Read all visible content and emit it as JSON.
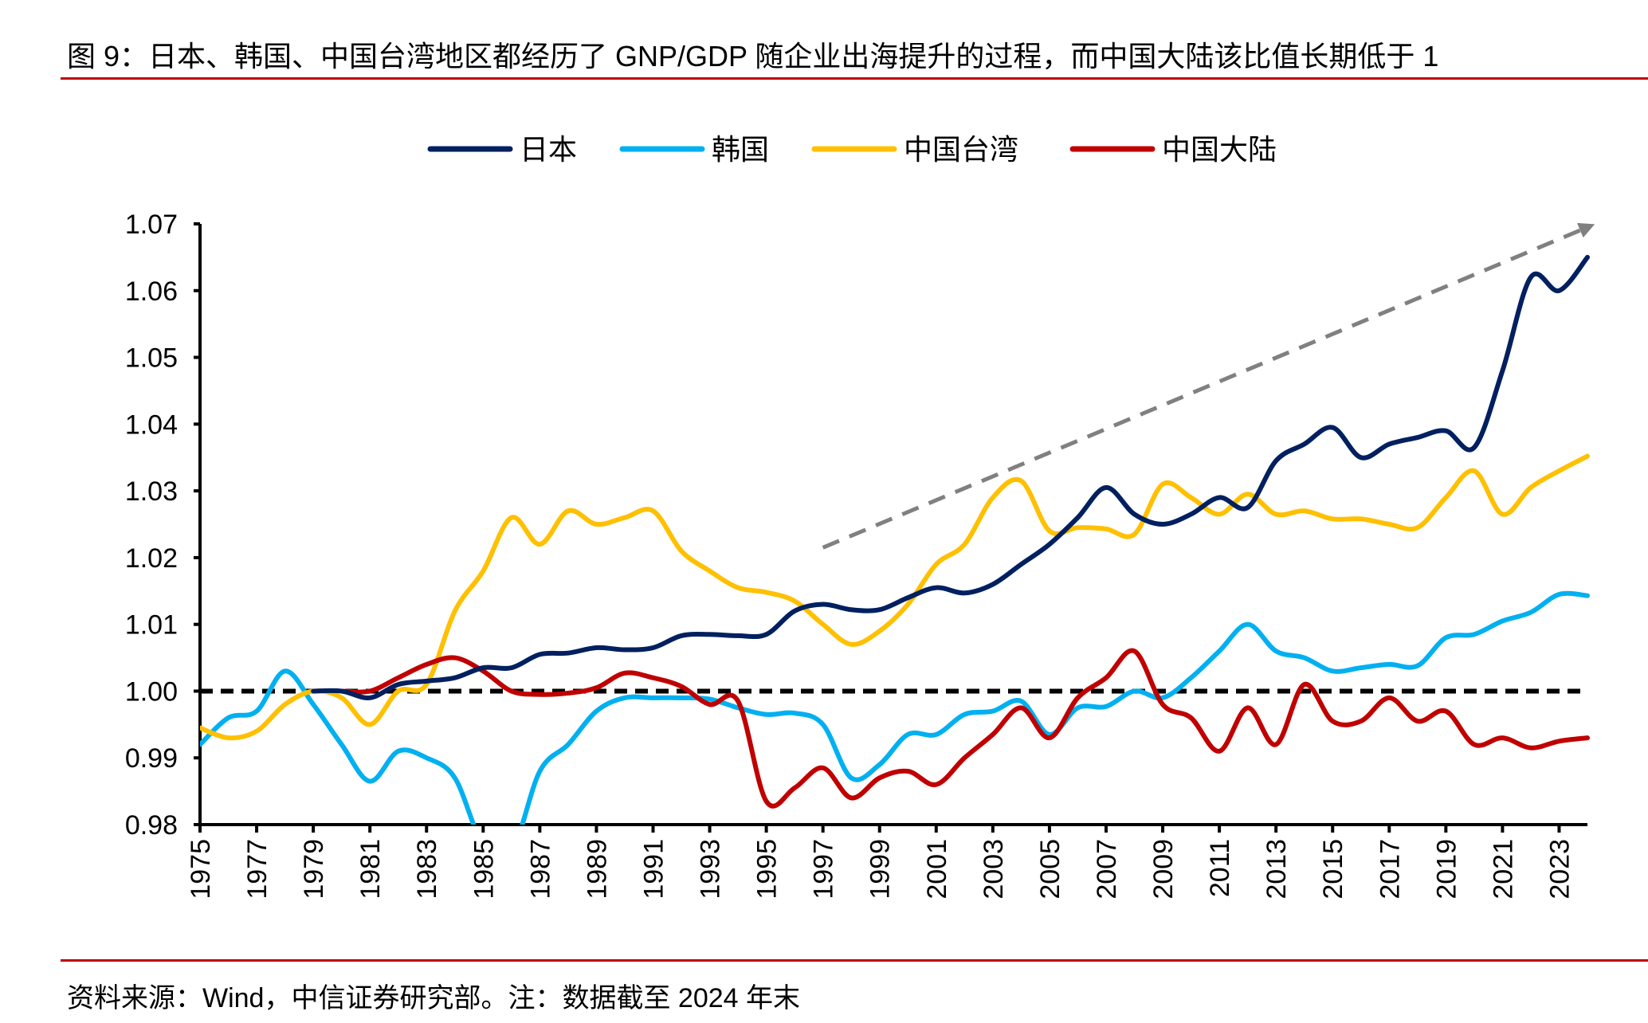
{
  "title": "图 9：日本、韩国、中国台湾地区都经历了 GNP/GDP 随企业出海提升的过程，而中国大陆该比值长期低于 1",
  "source": "资料来源：Wind，中信证券研究部。注：数据截至 2024 年末",
  "colors": {
    "rule": "#c00000",
    "japan": "#002060",
    "korea": "#00b0f0",
    "taiwan": "#ffc000",
    "mainland": "#c00000",
    "reference": "#000000",
    "arrow": "#808080"
  },
  "chart_data": {
    "type": "line",
    "title": "",
    "xlabel": "",
    "ylabel": "",
    "xlim": [
      1975,
      2024
    ],
    "ylim": [
      0.98,
      1.07
    ],
    "yticks": [
      "0.98",
      "0.99",
      "1.00",
      "1.01",
      "1.02",
      "1.03",
      "1.04",
      "1.05",
      "1.06",
      "1.07"
    ],
    "xticks": [
      "1975",
      "1977",
      "1979",
      "1981",
      "1983",
      "1985",
      "1987",
      "1989",
      "1991",
      "1993",
      "1995",
      "1997",
      "1999",
      "2001",
      "2003",
      "2005",
      "2007",
      "2009",
      "2011",
      "2013",
      "2015",
      "2017",
      "2019",
      "2021",
      "2023"
    ],
    "grid": false,
    "legend_position": "top",
    "reference_line": {
      "y": 1.0,
      "style": "dashed"
    },
    "trend_arrow": {
      "from": [
        1997,
        1.0215
      ],
      "to": [
        2024,
        1.0695
      ],
      "style": "dashed"
    },
    "series": [
      {
        "name": "日本",
        "color": "#002060",
        "x_start": 1979,
        "values": [
          1.0,
          1.0,
          0.999,
          1.001,
          1.0015,
          1.002,
          1.0035,
          1.0035,
          1.0055,
          1.0057,
          1.0065,
          1.0062,
          1.0065,
          1.0083,
          1.0085,
          1.0083,
          1.0085,
          1.012,
          1.013,
          1.0122,
          1.0122,
          1.014,
          1.0155,
          1.0147,
          1.016,
          1.019,
          1.022,
          1.026,
          1.0305,
          1.0265,
          1.025,
          1.0265,
          1.029,
          1.0275,
          1.0345,
          1.037,
          1.0395,
          1.035,
          1.037,
          1.038,
          1.039,
          1.0365,
          1.048,
          1.062,
          1.06,
          1.065
        ]
      },
      {
        "name": "韩国",
        "color": "#00b0f0",
        "x_start": 1975,
        "values": [
          0.992,
          0.996,
          0.997,
          1.003,
          0.998,
          0.992,
          0.9865,
          0.991,
          0.99,
          0.987,
          0.977,
          0.976,
          0.988,
          0.992,
          0.997,
          0.999,
          0.999,
          0.999,
          0.9988,
          0.9975,
          0.9965,
          0.9967,
          0.995,
          0.987,
          0.989,
          0.9935,
          0.9935,
          0.9965,
          0.997,
          0.9985,
          0.9935,
          0.9975,
          0.9977,
          1.0,
          0.999,
          1.002,
          1.006,
          1.01,
          1.006,
          1.005,
          1.003,
          1.0035,
          1.004,
          1.0038,
          1.008,
          1.0085,
          1.0105,
          1.0118,
          1.0145,
          1.0143
        ]
      },
      {
        "name": "中国台湾",
        "color": "#ffc000",
        "x_start": 1975,
        "values": [
          0.9945,
          0.993,
          0.994,
          0.998,
          1.0,
          0.999,
          0.995,
          1.0,
          1.001,
          1.012,
          1.018,
          1.026,
          1.022,
          1.027,
          1.025,
          1.026,
          1.027,
          1.021,
          1.018,
          1.0155,
          1.0148,
          1.0135,
          1.01,
          1.007,
          1.009,
          1.013,
          1.019,
          1.022,
          1.029,
          1.0315,
          1.024,
          1.0245,
          1.0243,
          1.0235,
          1.031,
          1.029,
          1.0265,
          1.0295,
          1.0265,
          1.027,
          1.0258,
          1.0258,
          1.025,
          1.0245,
          1.029,
          1.033,
          1.0265,
          1.0305,
          1.033,
          1.0352
        ]
      },
      {
        "name": "中国大陆",
        "color": "#c00000",
        "x_start": 1980,
        "values": [
          1.0,
          1.0,
          1.002,
          1.004,
          1.005,
          1.003,
          1.0,
          0.9995,
          0.9997,
          1.0005,
          1.0027,
          1.002,
          1.0007,
          0.998,
          0.9985,
          0.9835,
          0.9855,
          0.9885,
          0.984,
          0.987,
          0.988,
          0.986,
          0.99,
          0.9935,
          0.9975,
          0.993,
          0.999,
          1.002,
          1.006,
          0.998,
          0.996,
          0.991,
          0.9975,
          0.992,
          1.001,
          0.9955,
          0.9955,
          0.999,
          0.9955,
          0.997,
          0.992,
          0.993,
          0.9915,
          0.9925,
          0.993
        ]
      }
    ]
  }
}
